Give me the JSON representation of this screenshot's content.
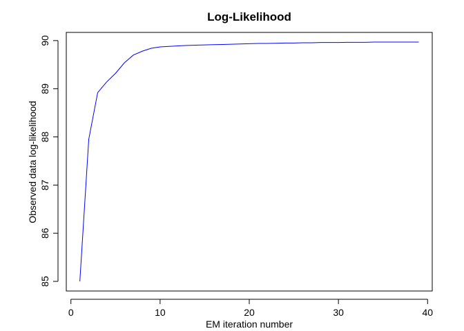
{
  "chart_data": {
    "type": "line",
    "title": "Log-Likelihood",
    "x_label": "EM iteration number",
    "y_label": "Observed data log-likelihood",
    "x": [
      1,
      2,
      3,
      4,
      5,
      6,
      7,
      8,
      9,
      10,
      11,
      12,
      13,
      14,
      15,
      16,
      17,
      18,
      19,
      20,
      21,
      22,
      23,
      24,
      25,
      26,
      27,
      28,
      29,
      30,
      31,
      32,
      33,
      34,
      35,
      36,
      37,
      38,
      39
    ],
    "values": [
      85.0,
      87.95,
      88.92,
      89.14,
      89.32,
      89.54,
      89.7,
      89.78,
      89.84,
      89.87,
      89.88,
      89.89,
      89.9,
      89.905,
      89.91,
      89.915,
      89.92,
      89.925,
      89.93,
      89.935,
      89.94,
      89.94,
      89.945,
      89.95,
      89.95,
      89.955,
      89.955,
      89.96,
      89.96,
      89.96,
      89.965,
      89.965,
      89.965,
      89.97,
      89.97,
      89.97,
      89.97,
      89.97,
      89.97
    ],
    "color": "#0000ff",
    "xlim": [
      -0.52,
      40.52
    ],
    "ylim": [
      84.8,
      90.17
    ],
    "xticks": [
      0,
      10,
      20,
      30,
      40
    ],
    "yticks": [
      85,
      86,
      87,
      88,
      89,
      90
    ]
  }
}
